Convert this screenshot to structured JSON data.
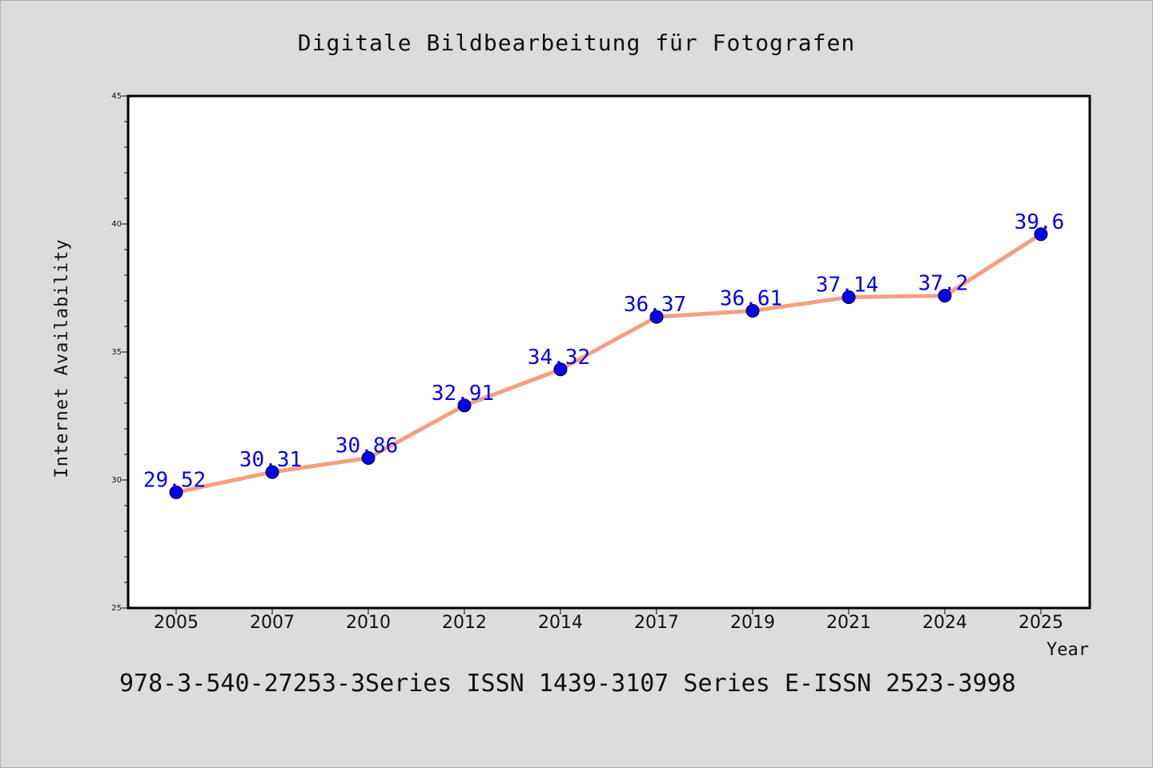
{
  "chart_data": {
    "type": "line",
    "title": "Digitale Bildbearbeitung für Fotografen",
    "xlabel": "Year",
    "ylabel": "Internet Availability",
    "categories": [
      "2005",
      "2007",
      "2010",
      "2012",
      "2014",
      "2017",
      "2019",
      "2021",
      "2024",
      "2025"
    ],
    "series": [
      {
        "values": [
          29.52,
          30.31,
          30.86,
          32.91,
          34.32,
          36.37,
          36.61,
          37.14,
          37.2,
          39.6
        ],
        "data_labels": [
          "29.52",
          "30.31",
          "30.86",
          "32.91",
          "34.32",
          "36.37",
          "36.61",
          "37.14",
          "37.2",
          "39.6"
        ]
      }
    ],
    "ylim": [
      25,
      45
    ],
    "yticks": [
      "25",
      "30",
      "35",
      "40",
      "45"
    ],
    "grid": false,
    "line_color": "#f4a07e",
    "marker_color": "#0000ee",
    "label_color": "#0000ee"
  },
  "footer": "978-3-540-27253-3Series ISSN 1439-3107 Series E-ISSN 2523-3998"
}
